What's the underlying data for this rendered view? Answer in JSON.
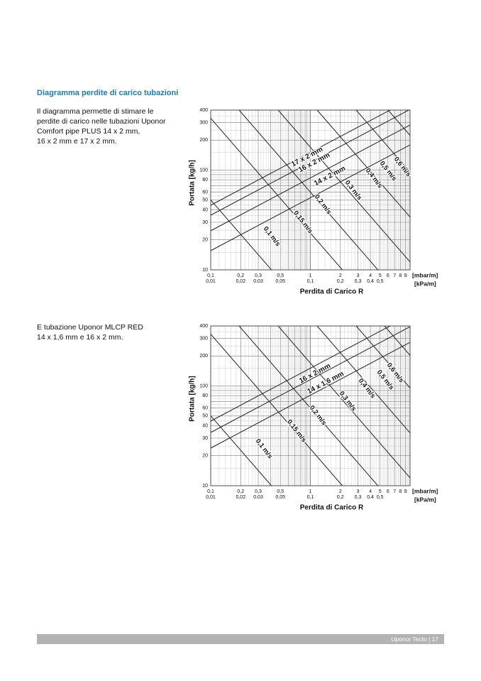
{
  "section_title": "Diagramma perdite di carico tubazioni",
  "diagrams": [
    {
      "description_lines": [
        "Il diagramma permette di stimare le",
        "perdite di carico nelle tubazioni Uponor",
        "Comfort pipe PLUS 14 x 2 mm,",
        "16 x 2 mm e 17 x 2 mm."
      ],
      "y_label": "Portata [kg/h]",
      "x_label": "Perdita di Carico R",
      "x_unit": "[mbar/m]",
      "x2_unit": "[kPa/m]",
      "y_range": [
        10,
        400
      ],
      "x_range": [
        0.1,
        10
      ],
      "x2_range": [
        0.01,
        1
      ],
      "yticks": [
        10,
        20,
        30,
        40,
        50,
        60,
        80,
        100,
        200,
        300,
        400
      ],
      "xticks": [
        {
          "value": 0.1,
          "label": "0,1"
        },
        {
          "value": 0.2,
          "label": "0,2"
        },
        {
          "value": 0.3,
          "label": "0,3"
        },
        {
          "value": 0.5,
          "label": "0,5"
        },
        1,
        2,
        3,
        4,
        5,
        6,
        7,
        8,
        9
      ],
      "x2ticks": [
        {
          "value": 0.01,
          "label": "0,01"
        },
        {
          "value": 0.02,
          "label": "0,02"
        },
        {
          "value": 0.03,
          "label": "0,03"
        },
        {
          "value": 0.05,
          "label": "0,05"
        },
        {
          "value": 0.1,
          "label": "0,1"
        },
        {
          "value": 0.2,
          "label": "0,2"
        },
        {
          "value": 0.3,
          "label": "0,3"
        },
        {
          "value": 0.4,
          "label": "0,4"
        },
        {
          "value": 0.5,
          "label": "0,5"
        }
      ],
      "pipe_labels": [
        "17 x 2 mm",
        "16 x 2 mm",
        "14 x 2 mm"
      ],
      "velocity_labels": [
        "0,6 m/s",
        "0,5 m/s",
        "0,4 m/s",
        "0,3 m/s",
        "0,2 m/s",
        "0,15 m/s",
        "0,1 m/s"
      ]
    },
    {
      "description_lines": [
        "E tubazione Uponor MLCP RED",
        "14 x 1,6 mm e 16 x 2 mm."
      ],
      "y_label": "Portata [kg/h]",
      "x_label": "Perdita di Carico R",
      "x_unit": "[mbar/m]",
      "x2_unit": "[kPa/m]",
      "y_range": [
        10,
        400
      ],
      "x_range": [
        0.1,
        10
      ],
      "x2_range": [
        0.01,
        1
      ],
      "yticks": [
        10,
        20,
        30,
        40,
        50,
        60,
        80,
        100,
        200,
        300,
        400
      ],
      "xticks": [
        {
          "value": 0.1,
          "label": "0,1"
        },
        {
          "value": 0.2,
          "label": "0,2"
        },
        {
          "value": 0.3,
          "label": "0,3"
        },
        {
          "value": 0.5,
          "label": "0,5"
        },
        1,
        2,
        3,
        4,
        5,
        6,
        7,
        8,
        9
      ],
      "x2ticks": [
        {
          "value": 0.01,
          "label": "0,01"
        },
        {
          "value": 0.02,
          "label": "0,02"
        },
        {
          "value": 0.03,
          "label": "0,03"
        },
        {
          "value": 0.05,
          "label": "0,05"
        },
        {
          "value": 0.1,
          "label": "0,1"
        },
        {
          "value": 0.2,
          "label": "0,2"
        },
        {
          "value": 0.3,
          "label": "0,3"
        },
        {
          "value": 0.4,
          "label": "0,4"
        },
        {
          "value": 0.5,
          "label": "0,5"
        }
      ],
      "pipe_labels": [
        "16 x 2 mm",
        "14 x 1,6 mm"
      ],
      "velocity_labels": [
        "0,6 m/s",
        "0,5 m/s",
        "0,4 m/s",
        "0,3 m/s",
        "0,2 m/s",
        "0,15 m/s",
        "0,1 m/s"
      ]
    }
  ],
  "footer": "Uponor Tecto | 17"
}
